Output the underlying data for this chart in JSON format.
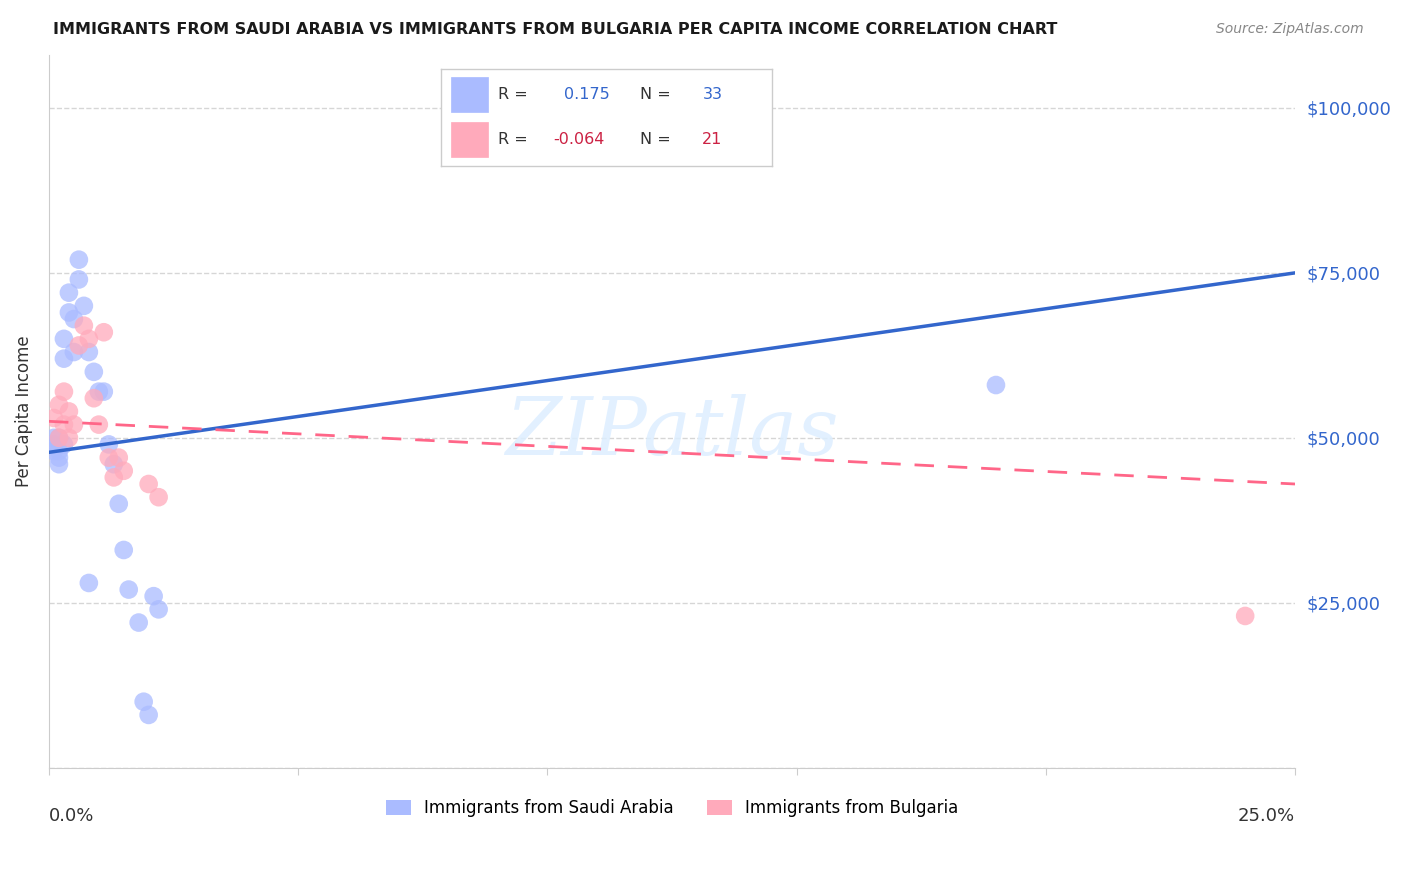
{
  "title": "IMMIGRANTS FROM SAUDI ARABIA VS IMMIGRANTS FROM BULGARIA PER CAPITA INCOME CORRELATION CHART",
  "source": "Source: ZipAtlas.com",
  "ylabel": "Per Capita Income",
  "watermark": "ZIPatlas",
  "ylim": [
    0,
    108000
  ],
  "xlim": [
    0.0,
    0.25
  ],
  "ytick_vals": [
    25000,
    50000,
    75000,
    100000
  ],
  "ytick_labels": [
    "$25,000",
    "$50,000",
    "$75,000",
    "$100,000"
  ],
  "bg_color": "#ffffff",
  "grid_color": "#cccccc",
  "saudi_color": "#aabbff",
  "bulgaria_color": "#ffaabb",
  "saudi_line_color": "#3366cc",
  "bulgaria_line_color": "#ff6688",
  "right_tick_color": "#3366cc",
  "title_color": "#1a1a1a",
  "source_color": "#888888",
  "axis_label_color": "#333333",
  "saudi_x": [
    0.001,
    0.001,
    0.001,
    0.002,
    0.002,
    0.002,
    0.002,
    0.003,
    0.003,
    0.003,
    0.004,
    0.004,
    0.005,
    0.005,
    0.006,
    0.006,
    0.007,
    0.008,
    0.008,
    0.009,
    0.01,
    0.011,
    0.012,
    0.013,
    0.014,
    0.015,
    0.016,
    0.018,
    0.019,
    0.02,
    0.021,
    0.022,
    0.19
  ],
  "saudi_y": [
    48000,
    49000,
    50000,
    47000,
    48000,
    50000,
    46000,
    49000,
    62000,
    65000,
    69000,
    72000,
    68000,
    63000,
    74000,
    77000,
    70000,
    28000,
    63000,
    60000,
    57000,
    57000,
    49000,
    46000,
    40000,
    33000,
    27000,
    22000,
    10000,
    8000,
    26000,
    24000,
    58000
  ],
  "bulgaria_x": [
    0.001,
    0.002,
    0.002,
    0.003,
    0.003,
    0.004,
    0.004,
    0.005,
    0.006,
    0.007,
    0.008,
    0.009,
    0.01,
    0.011,
    0.012,
    0.013,
    0.014,
    0.015,
    0.02,
    0.022,
    0.24
  ],
  "bulgaria_y": [
    53000,
    50000,
    55000,
    52000,
    57000,
    54000,
    50000,
    52000,
    64000,
    67000,
    65000,
    56000,
    52000,
    66000,
    47000,
    44000,
    47000,
    45000,
    43000,
    41000,
    23000
  ],
  "saudi_line_x0": 0.0,
  "saudi_line_y0": 47800,
  "saudi_line_x1": 0.25,
  "saudi_line_y1": 75000,
  "bulgaria_line_x0": 0.0,
  "bulgaria_line_y0": 52500,
  "bulgaria_line_x1": 0.25,
  "bulgaria_line_y1": 43000
}
